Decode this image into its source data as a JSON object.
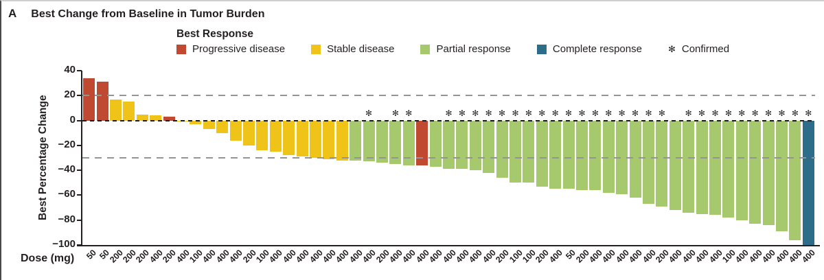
{
  "panel": {
    "letter": "A",
    "title": "Best Change from Baseline in Tumor Burden"
  },
  "legend": {
    "title": "Best Response",
    "items": [
      {
        "key": "PD",
        "label": "Progressive disease",
        "color": "#c04a31"
      },
      {
        "key": "SD",
        "label": "Stable disease",
        "color": "#f0c319"
      },
      {
        "key": "PR",
        "label": "Partial response",
        "color": "#a6c96e"
      },
      {
        "key": "CR",
        "label": "Complete response",
        "color": "#2e6d89"
      },
      {
        "key": "confirmed",
        "label": "Confirmed",
        "symbol": "✻"
      }
    ]
  },
  "axes": {
    "ylabel": "Best Percentage Change",
    "xlabel": "Dose (mg)"
  },
  "chart_data": {
    "type": "bar",
    "title": "Best Change from Baseline in Tumor Burden",
    "ylabel": "Best Percentage Change",
    "xlabel": "Dose (mg)",
    "ylim": [
      -100,
      40
    ],
    "yticks": [
      40,
      20,
      0,
      -20,
      -40,
      -60,
      -80,
      -100
    ],
    "grid": "off",
    "legend_position": "top",
    "confirmed_marker": "✻",
    "reference_lines": [
      {
        "y": 20,
        "style": "dashed",
        "color": "#949494"
      },
      {
        "y": 0,
        "style": "dashed",
        "color": "#1a1a1a"
      },
      {
        "y": -30,
        "style": "dashed",
        "color": "#949494"
      }
    ],
    "bars": [
      {
        "dose": "50",
        "value": 34,
        "response": "PD",
        "confirmed": false
      },
      {
        "dose": "50",
        "value": 31,
        "response": "PD",
        "confirmed": false
      },
      {
        "dose": "200",
        "value": 17,
        "response": "SD",
        "confirmed": false
      },
      {
        "dose": "200",
        "value": 15,
        "response": "SD",
        "confirmed": false
      },
      {
        "dose": "200",
        "value": 5,
        "response": "SD",
        "confirmed": false
      },
      {
        "dose": "400",
        "value": 4,
        "response": "SD",
        "confirmed": false
      },
      {
        "dose": "200",
        "value": 3,
        "response": "PD",
        "confirmed": false
      },
      {
        "dose": "400",
        "value": -1,
        "response": "SD",
        "confirmed": false
      },
      {
        "dose": "100",
        "value": -3,
        "response": "SD",
        "confirmed": false
      },
      {
        "dose": "400",
        "value": -7,
        "response": "SD",
        "confirmed": false
      },
      {
        "dose": "400",
        "value": -10,
        "response": "SD",
        "confirmed": false
      },
      {
        "dose": "400",
        "value": -16,
        "response": "SD",
        "confirmed": false
      },
      {
        "dose": "200",
        "value": -20,
        "response": "SD",
        "confirmed": false
      },
      {
        "dose": "100",
        "value": -24,
        "response": "SD",
        "confirmed": false
      },
      {
        "dose": "400",
        "value": -25,
        "response": "SD",
        "confirmed": false
      },
      {
        "dose": "400",
        "value": -28,
        "response": "SD",
        "confirmed": false
      },
      {
        "dose": "400",
        "value": -29,
        "response": "SD",
        "confirmed": false
      },
      {
        "dose": "400",
        "value": -30,
        "response": "SD",
        "confirmed": false
      },
      {
        "dose": "400",
        "value": -31,
        "response": "SD",
        "confirmed": false
      },
      {
        "dose": "400",
        "value": -32,
        "response": "SD",
        "confirmed": false
      },
      {
        "dose": "400",
        "value": -32,
        "response": "PR",
        "confirmed": false
      },
      {
        "dose": "400",
        "value": -33,
        "response": "PR",
        "confirmed": true
      },
      {
        "dose": "200",
        "value": -34,
        "response": "PR",
        "confirmed": false
      },
      {
        "dose": "400",
        "value": -35,
        "response": "PR",
        "confirmed": true
      },
      {
        "dose": "400",
        "value": -36,
        "response": "PR",
        "confirmed": true
      },
      {
        "dose": "400",
        "value": -36,
        "response": "PD",
        "confirmed": false
      },
      {
        "dose": "400",
        "value": -37,
        "response": "PR",
        "confirmed": false
      },
      {
        "dose": "400",
        "value": -39,
        "response": "PR",
        "confirmed": true
      },
      {
        "dose": "400",
        "value": -39,
        "response": "PR",
        "confirmed": true
      },
      {
        "dose": "400",
        "value": -40,
        "response": "PR",
        "confirmed": true
      },
      {
        "dose": "400",
        "value": -42,
        "response": "PR",
        "confirmed": true
      },
      {
        "dose": "200",
        "value": -46,
        "response": "PR",
        "confirmed": true
      },
      {
        "dose": "100",
        "value": -50,
        "response": "PR",
        "confirmed": true
      },
      {
        "dose": "100",
        "value": -50,
        "response": "PR",
        "confirmed": true
      },
      {
        "dose": "200",
        "value": -53,
        "response": "PR",
        "confirmed": true
      },
      {
        "dose": "400",
        "value": -55,
        "response": "PR",
        "confirmed": true
      },
      {
        "dose": "50",
        "value": -55,
        "response": "PR",
        "confirmed": true
      },
      {
        "dose": "200",
        "value": -56,
        "response": "PR",
        "confirmed": true
      },
      {
        "dose": "400",
        "value": -56,
        "response": "PR",
        "confirmed": true
      },
      {
        "dose": "400",
        "value": -58,
        "response": "PR",
        "confirmed": true
      },
      {
        "dose": "400",
        "value": -59,
        "response": "PR",
        "confirmed": true
      },
      {
        "dose": "400",
        "value": -62,
        "response": "PR",
        "confirmed": true
      },
      {
        "dose": "400",
        "value": -67,
        "response": "PR",
        "confirmed": true
      },
      {
        "dose": "200",
        "value": -69,
        "response": "PR",
        "confirmed": true
      },
      {
        "dose": "400",
        "value": -72,
        "response": "PR",
        "confirmed": false
      },
      {
        "dose": "400",
        "value": -74,
        "response": "PR",
        "confirmed": true
      },
      {
        "dose": "400",
        "value": -75,
        "response": "PR",
        "confirmed": true
      },
      {
        "dose": "400",
        "value": -76,
        "response": "PR",
        "confirmed": true
      },
      {
        "dose": "100",
        "value": -78,
        "response": "PR",
        "confirmed": true
      },
      {
        "dose": "400",
        "value": -80,
        "response": "PR",
        "confirmed": true
      },
      {
        "dose": "400",
        "value": -83,
        "response": "PR",
        "confirmed": true
      },
      {
        "dose": "400",
        "value": -84,
        "response": "PR",
        "confirmed": true
      },
      {
        "dose": "400",
        "value": -89,
        "response": "PR",
        "confirmed": true
      },
      {
        "dose": "400",
        "value": -96,
        "response": "PR",
        "confirmed": true
      },
      {
        "dose": "400",
        "value": -100,
        "response": "CR",
        "confirmed": true
      }
    ]
  }
}
